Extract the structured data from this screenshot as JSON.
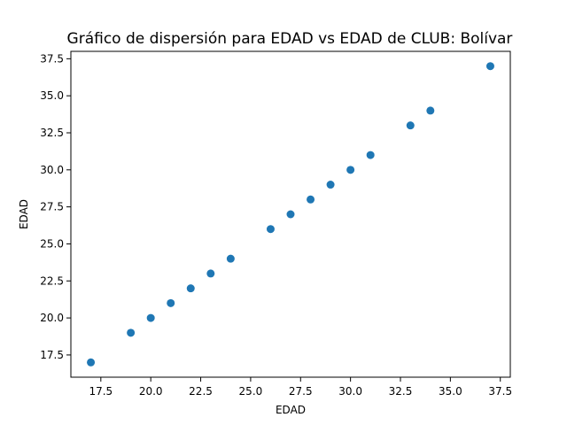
{
  "chart_data": {
    "type": "scatter",
    "title": "Gráfico de dispersión para EDAD vs EDAD de CLUB: Bolívar",
    "xlabel": "EDAD",
    "ylabel": "EDAD",
    "xlim": [
      16.0,
      38.0
    ],
    "ylim": [
      16.0,
      38.0
    ],
    "xticks": [
      "17.5",
      "20.0",
      "22.5",
      "25.0",
      "27.5",
      "30.0",
      "32.5",
      "35.0",
      "37.5"
    ],
    "yticks": [
      "17.5",
      "20.0",
      "22.5",
      "25.0",
      "27.5",
      "30.0",
      "32.5",
      "35.0",
      "37.5"
    ],
    "grid": false,
    "marker_color": "#1f77b4",
    "series": [
      {
        "x": [
          17,
          19,
          20,
          21,
          22,
          23,
          24,
          26,
          27,
          28,
          29,
          30,
          31,
          33,
          34,
          37
        ],
        "y": [
          17,
          19,
          20,
          21,
          22,
          23,
          24,
          26,
          27,
          28,
          29,
          30,
          31,
          33,
          34,
          37
        ]
      }
    ]
  }
}
